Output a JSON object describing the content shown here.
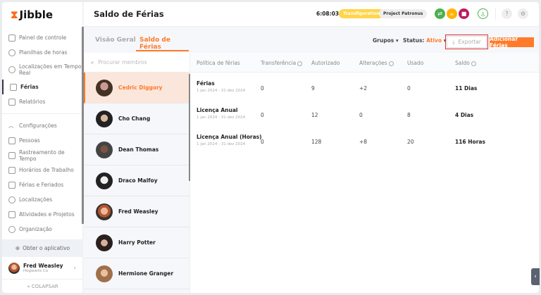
{
  "app": {
    "logo": "Jibble",
    "page_title": "Saldo de Férias"
  },
  "sidebar": {
    "items": [
      {
        "label": "Painel de controle"
      },
      {
        "label": "Planilhas de horas"
      },
      {
        "label": "Localizações em Tempo Real"
      },
      {
        "label": "Férias",
        "active": true
      },
      {
        "label": "Relatórios"
      }
    ],
    "settings_label": "Configurações",
    "settings_items": [
      {
        "label": "Pessoas"
      },
      {
        "label": "Rastreamento de Tempo"
      },
      {
        "label": "Horários de Trabalho"
      },
      {
        "label": "Férias e Feriados"
      },
      {
        "label": "Localizações"
      },
      {
        "label": "Atividades e Projetos"
      },
      {
        "label": "Organização"
      }
    ],
    "get_app": "Obter o aplicativo",
    "user": {
      "name": "Fred Weasley",
      "org": "Hogwarts Co"
    },
    "collapse": "COLAPSAR"
  },
  "header": {
    "timer": "6:08:03",
    "activity": "Transfiguration",
    "project": "Project Patronus",
    "colors": {
      "activity": "#ffd54a",
      "green": "#4caf50",
      "orange": "#ffb300",
      "stop": "#c2185b"
    }
  },
  "tabs": [
    {
      "label": "Visão Geral"
    },
    {
      "label": "Saldo de Férias",
      "active": true
    }
  ],
  "toolbar": {
    "groups": "Grupos",
    "status_label": "Status:",
    "status_value": "Ativo",
    "export": "Exportar",
    "add": "Adicionar Férias"
  },
  "members": {
    "search_placeholder": "Procurar membros",
    "items": [
      "Cedric Diggory",
      "Cho Chang",
      "Dean Thomas",
      "Draco Malfoy",
      "Fred Weasley",
      "Harry Potter",
      "Hermione Granger"
    ],
    "selected": "Cedric Diggory"
  },
  "table": {
    "columns": [
      "Política de férias",
      "Transferência",
      "Autorizado",
      "Alterações",
      "Usado",
      "Saldo"
    ],
    "rows": [
      {
        "policy": "Férias",
        "period": "1 jan 2024 - 31 dez 2024",
        "transfer": "0",
        "authorized": "9",
        "changes": "+2",
        "used": "0",
        "balance": "11 Dias"
      },
      {
        "policy": "Licença Anual",
        "period": "1 jan 2024 - 31 dez 2024",
        "transfer": "0",
        "authorized": "12",
        "changes": "0",
        "used": "8",
        "balance": "4 Dias"
      },
      {
        "policy": "Licença Anual (Horas)",
        "period": "1 jan 2024 - 31 dez 2024",
        "transfer": "0",
        "authorized": "128",
        "changes": "+8",
        "used": "20",
        "balance": "116 Horas"
      }
    ]
  },
  "accent": "#ff7a2a"
}
